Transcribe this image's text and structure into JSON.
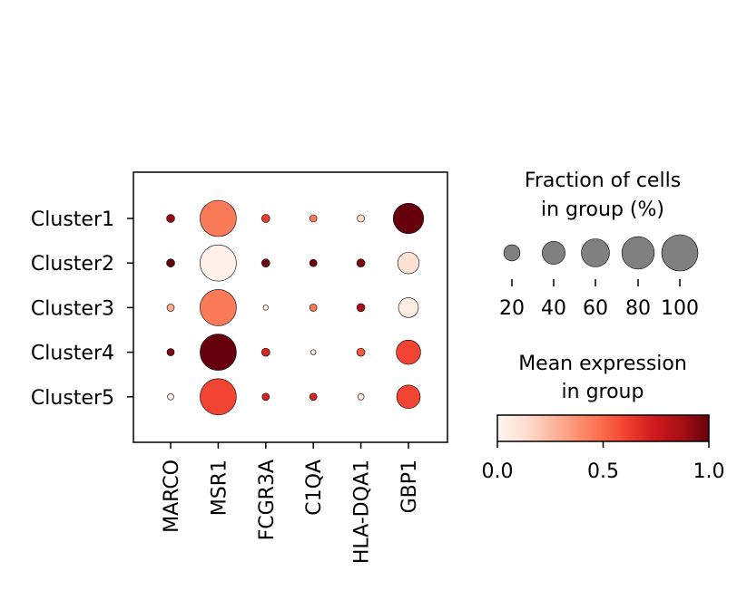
{
  "chart_data": {
    "type": "scatter",
    "subtype": "dot-plot",
    "genes": [
      "MARCO",
      "MSR1",
      "FCGR3A",
      "C1QA",
      "HLA-DQA1",
      "GBP1"
    ],
    "groups": [
      "Cluster1",
      "Cluster2",
      "Cluster3",
      "Cluster4",
      "Cluster5"
    ],
    "fraction_pct": [
      [
        5,
        100,
        5,
        4,
        4,
        70
      ],
      [
        5,
        100,
        5,
        4,
        5,
        35
      ],
      [
        4,
        100,
        2,
        4,
        5,
        30
      ],
      [
        4,
        100,
        5,
        2,
        5,
        45
      ],
      [
        3,
        100,
        4,
        4,
        3,
        42
      ]
    ],
    "mean_expression": [
      [
        0.9,
        0.45,
        0.62,
        0.45,
        0.15,
        1.0
      ],
      [
        1.0,
        0.03,
        0.97,
        0.97,
        0.95,
        0.12
      ],
      [
        0.3,
        0.45,
        0.05,
        0.45,
        0.85,
        0.05
      ],
      [
        0.95,
        1.0,
        0.7,
        0.05,
        0.55,
        0.6
      ],
      [
        0.05,
        0.6,
        0.7,
        0.7,
        0.05,
        0.6
      ]
    ],
    "size_legend": {
      "title_lines": [
        "Fraction of cells",
        "in group (%)"
      ],
      "values": [
        20,
        40,
        60,
        80,
        100
      ],
      "labels": [
        "20",
        "40",
        "60",
        "80",
        "100"
      ]
    },
    "color_legend": {
      "title_lines": [
        "Mean expression",
        "in group"
      ],
      "range": [
        0.0,
        1.0
      ],
      "ticks": [
        "0.0",
        "0.5",
        "1.0"
      ],
      "colormap": "Reds"
    },
    "colormap_stops": [
      "#fff5f0",
      "#fee0d2",
      "#fcbba1",
      "#fc9272",
      "#fb6a4a",
      "#ef3b2c",
      "#cb181d",
      "#a50f15",
      "#67000d"
    ],
    "edge_color": "#000000",
    "size_legend_color": "#808080"
  }
}
